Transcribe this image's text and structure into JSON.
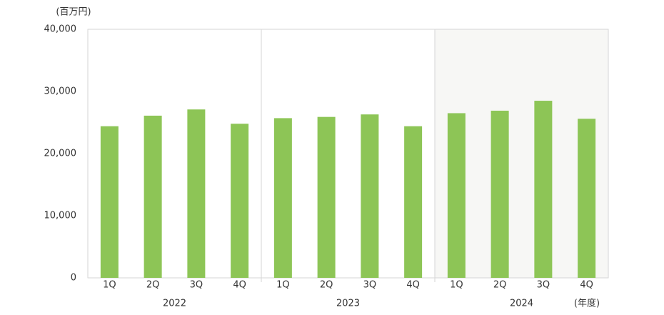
{
  "chart_data": {
    "type": "bar",
    "y_unit": "(百万円)",
    "x_unit": "(年度)",
    "categories": [
      "1Q",
      "2Q",
      "3Q",
      "4Q",
      "1Q",
      "2Q",
      "3Q",
      "4Q",
      "1Q",
      "2Q",
      "3Q",
      "4Q"
    ],
    "groups": [
      "2022",
      "2023",
      "2024"
    ],
    "values": [
      24400,
      26100,
      27100,
      24800,
      25700,
      25900,
      26300,
      24400,
      26500,
      26900,
      28500,
      25600
    ],
    "color": "#8dc556",
    "ylim": [
      0,
      40000
    ],
    "yticks": [
      0,
      {
        "value": 10000,
        "label": "10,000"
      },
      {
        "value": 20000,
        "label": "20,000"
      },
      {
        "value": 30000,
        "label": "30,000"
      },
      {
        "value": 40000,
        "label": "40,000"
      }
    ],
    "grid": false
  }
}
